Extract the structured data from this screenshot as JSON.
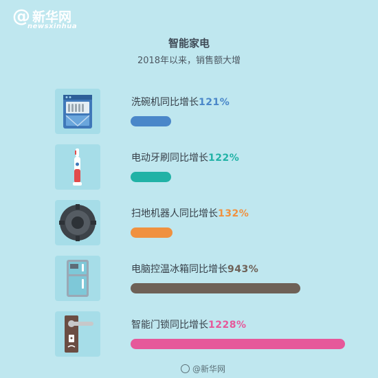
{
  "logo": {
    "symbol": "@",
    "name_cn": "新华网",
    "name_en": "newsxinhua"
  },
  "header": {
    "title": "智能家电",
    "subtitle": "2018年以来，销售额大增"
  },
  "watermark": "@新华网",
  "chart_data": {
    "type": "bar",
    "orientation": "horizontal",
    "title": "智能家电",
    "subtitle": "2018年以来，销售额大增",
    "unit": "%",
    "categories": [
      "洗碗机",
      "电动牙刷",
      "扫地机器人",
      "电脑控温冰箱",
      "智能门锁"
    ],
    "values": [
      121,
      122,
      132,
      943,
      1228
    ],
    "label_suffix": "同比增长",
    "colors": [
      "#4a87c9",
      "#21b2a6",
      "#f0913f",
      "#6e6157",
      "#e6589a"
    ],
    "icons": [
      "dishwasher-icon",
      "electric-toothbrush-icon",
      "robot-vacuum-icon",
      "refrigerator-icon",
      "smart-lock-icon"
    ],
    "grid": false,
    "legend": "none"
  }
}
